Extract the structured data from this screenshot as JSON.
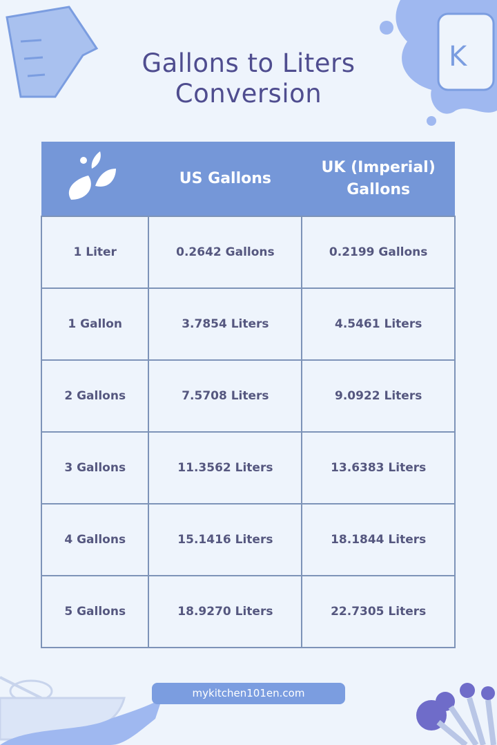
{
  "title": {
    "line1": "Gallons to Liters",
    "line2": "Conversion"
  },
  "table": {
    "headers": [
      "",
      "US Gallons",
      "UK (Imperial) Gallons"
    ],
    "header_icon": "water-splash-icon",
    "rows": [
      [
        "1 Liter",
        "0.2642 Gallons",
        "0.2199 Gallons"
      ],
      [
        "1 Gallon",
        "3.7854 Liters",
        "4.5461 Liters"
      ],
      [
        "2 Gallons",
        "7.5708 Liters",
        "9.0922 Liters"
      ],
      [
        "3 Gallons",
        "11.3562 Liters",
        "13.6383 Liters"
      ],
      [
        "4 Gallons",
        "15.1416 Liters",
        "18.1844 Liters"
      ],
      [
        "5 Gallons",
        "18.9270 Liters",
        "22.7305 Liters"
      ]
    ]
  },
  "footer": {
    "website": "mykitchen101en.com"
  },
  "colors": {
    "accent": "#7597d8",
    "title": "#4f4d8f",
    "background": "#eef4fc",
    "text": "#55577f"
  }
}
